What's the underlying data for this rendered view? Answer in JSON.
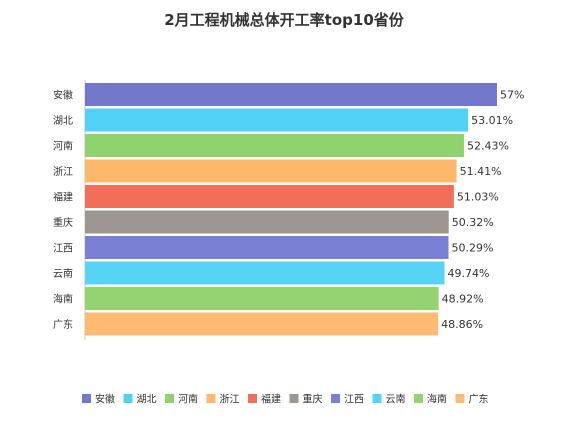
{
  "chart_data": {
    "type": "bar",
    "orientation": "horizontal",
    "title": "2月工程机械总体开工率top10省份",
    "categories": [
      "安徽",
      "湖北",
      "河南",
      "浙江",
      "福建",
      "重庆",
      "江西",
      "云南",
      "海南",
      "广东"
    ],
    "values": [
      57,
      53.01,
      52.43,
      51.41,
      51.03,
      50.32,
      50.29,
      49.74,
      48.92,
      48.86
    ],
    "value_labels": [
      "57%",
      "53.01%",
      "52.43%",
      "51.41%",
      "51.03%",
      "50.32%",
      "50.29%",
      "49.74%",
      "48.92%",
      "48.86%"
    ],
    "xlim": [
      0,
      57
    ],
    "grid": false,
    "colors": [
      "#7378cc",
      "#4fd2f5",
      "#8fd36e",
      "#fdb86b",
      "#f26e58",
      "#9c9891",
      "#7b80d4",
      "#55d4f6",
      "#93d470",
      "#fdbb72"
    ],
    "legend": {
      "position": "bottom",
      "entries": [
        "安徽",
        "湖北",
        "河南",
        "浙江",
        "福建",
        "重庆",
        "江西",
        "云南",
        "海南",
        "广东"
      ]
    }
  }
}
